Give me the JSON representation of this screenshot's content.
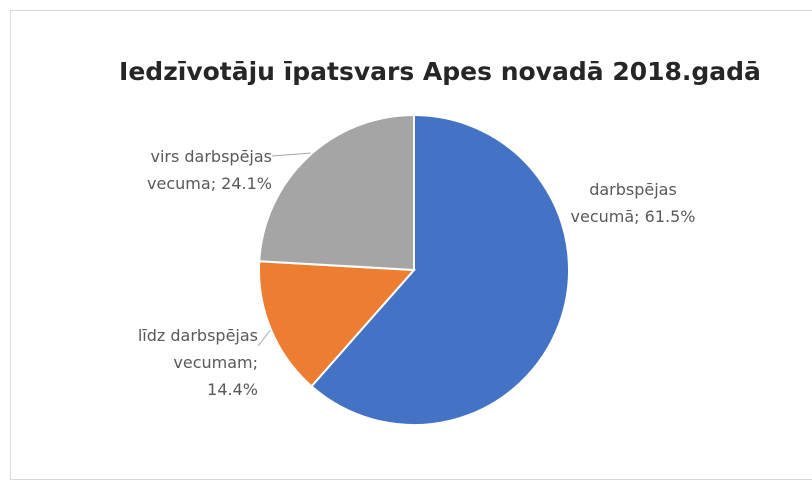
{
  "chart_data": {
    "type": "pie",
    "title": "Iedzīvotāju īpatsvars Apes novadā 2018.gadā",
    "values": [
      61.5,
      14.4,
      24.1
    ],
    "value_labels": [
      "darbspējas vecumā; 61.5%",
      "līdz darbspējas vecumam; 14.4%",
      "virs darbspējas vecuma; 24.1%"
    ],
    "colors": [
      "#4472c4",
      "#ed7d31",
      "#a5a5a5"
    ]
  }
}
